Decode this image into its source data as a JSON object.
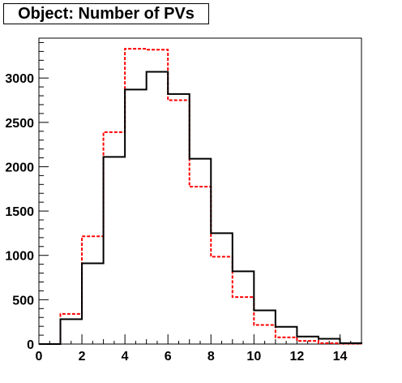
{
  "title": "Object: Number of PVs",
  "chart_data": {
    "type": "histogram",
    "title": "Object: Number of PVs",
    "xlabel": "",
    "ylabel": "",
    "xlim": [
      0,
      15
    ],
    "ylim": [
      0,
      3450
    ],
    "bin_edges": [
      0,
      1,
      2,
      3,
      4,
      5,
      6,
      7,
      8,
      9,
      10,
      11,
      12,
      13,
      14,
      15
    ],
    "x_ticks": [
      0,
      2,
      4,
      6,
      8,
      10,
      12,
      14
    ],
    "y_ticks": [
      0,
      500,
      1000,
      1500,
      2000,
      2500,
      3000
    ],
    "grid": false,
    "legend": "none",
    "series": [
      {
        "style": "solid",
        "color": "#000000",
        "values": [
          0,
          280,
          910,
          2110,
          2870,
          3070,
          2820,
          2090,
          1250,
          820,
          380,
          195,
          85,
          60,
          10
        ]
      },
      {
        "style": "dashed",
        "color": "#ff0000",
        "values": [
          0,
          340,
          1215,
          2390,
          3330,
          3320,
          2750,
          1775,
          985,
          530,
          215,
          75,
          35,
          10,
          5
        ]
      }
    ]
  }
}
